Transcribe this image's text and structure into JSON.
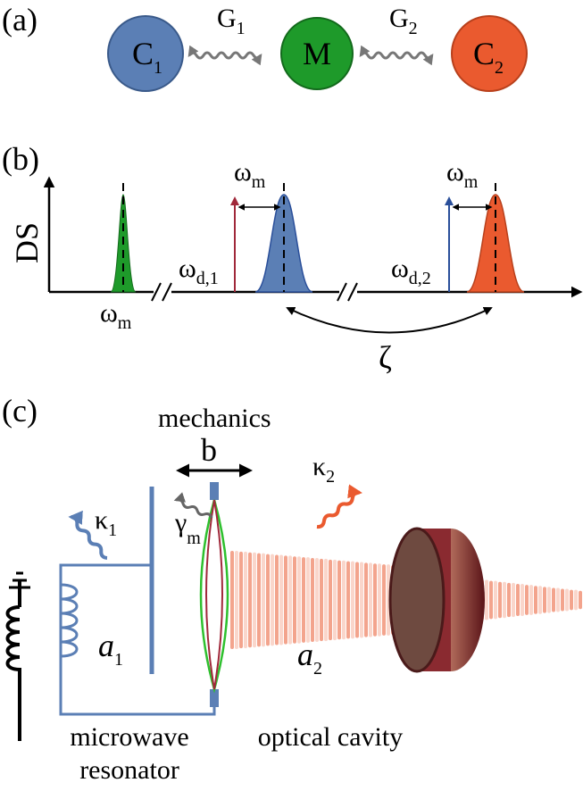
{
  "panel_a": {
    "label": "(a)",
    "nodes": [
      {
        "main": "C",
        "sub": "1"
      },
      {
        "main": "M"
      },
      {
        "main": "C",
        "sub": "2"
      }
    ],
    "couplings": [
      {
        "main": "G",
        "sub": "1"
      },
      {
        "main": "G",
        "sub": "2"
      }
    ]
  },
  "panel_b": {
    "label": "(b)",
    "axis_label": "DS",
    "mechanical_freq": {
      "main": "ω",
      "sub": "m"
    },
    "drives": [
      {
        "main": "ω",
        "sub": "d,1"
      },
      {
        "main": "ω",
        "sub": "d,2"
      }
    ],
    "detunings": [
      {
        "main": "ω",
        "sub": "m"
      },
      {
        "main": "ω",
        "sub": "m"
      }
    ],
    "link": "ζ"
  },
  "panel_c": {
    "label": "(c)",
    "mechanics": "mechanics",
    "mode": "b",
    "losses": [
      {
        "main": "κ",
        "sub": "1"
      },
      {
        "main": "γ",
        "sub": "m"
      },
      {
        "main": "κ",
        "sub": "2"
      }
    ],
    "modes": [
      {
        "main": "a",
        "sub": "1"
      },
      {
        "main": "a",
        "sub": "2"
      }
    ],
    "microwave": [
      "microwave",
      "resonator"
    ],
    "optical": "optical cavity"
  }
}
